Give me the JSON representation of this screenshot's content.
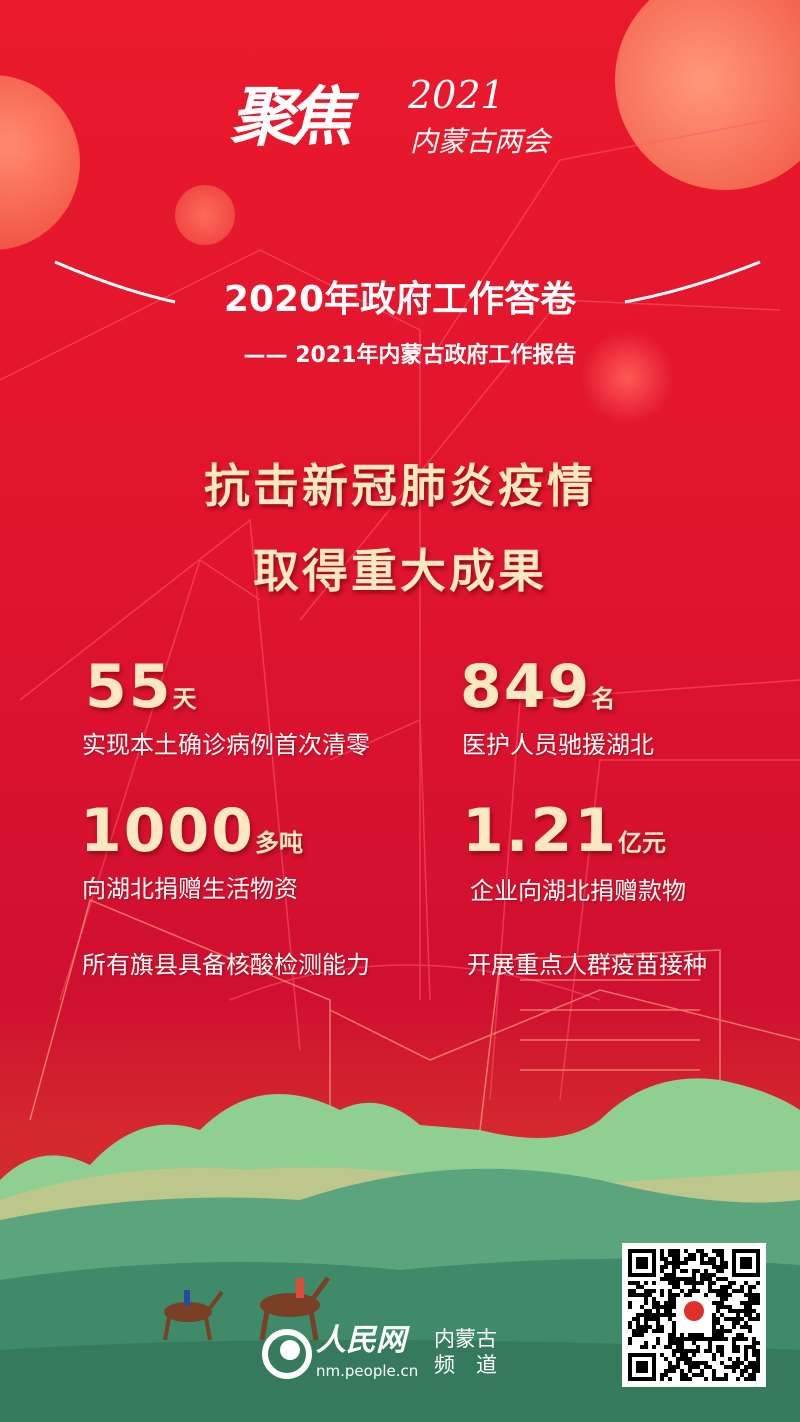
{
  "logo": {
    "text": "聚焦2021内蒙古两会",
    "main": "聚焦",
    "year": "2021",
    "sub": "内蒙古两会"
  },
  "header": {
    "title": "2020年政府工作答卷",
    "subtitle": "—— 2021年内蒙古政府工作报告"
  },
  "headline": {
    "line1": "抗击新冠肺炎疫情",
    "line2": "取得重大成果"
  },
  "stats": [
    {
      "number": "55",
      "unit": "天",
      "label": "实现本土确诊病例首次清零"
    },
    {
      "number": "849",
      "unit": "名",
      "label": "医护人员驰援湖北"
    },
    {
      "number": "1000",
      "unit": "多吨",
      "label": "向湖北捐赠生活物资"
    },
    {
      "number": "1.21",
      "unit": "亿元",
      "label": "企业向湖北捐赠款物"
    }
  ],
  "extras": [
    "所有旗县具备核酸检测能力",
    "开展重点人群疫苗接种"
  ],
  "footer": {
    "brand": "人民网",
    "channel_line1": "内蒙古",
    "channel_line2": "频　道",
    "url": "nm.people.cn"
  },
  "colors": {
    "background": "#e0142e",
    "accent_text": "#fbe7c0",
    "hills": "#4f9a78"
  }
}
